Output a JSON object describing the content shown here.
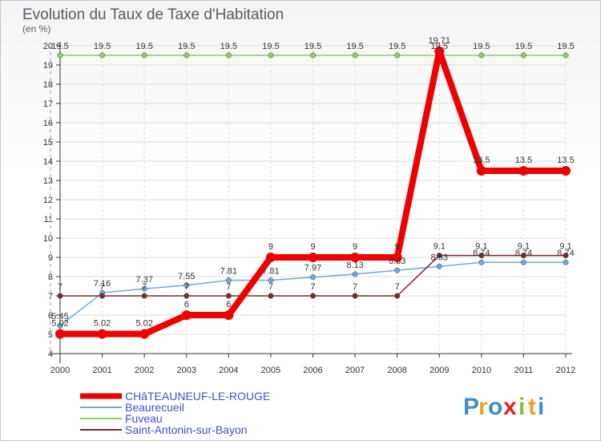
{
  "chart_data": {
    "type": "line",
    "title": "Evolution du Taux de Taxe d'Habitation",
    "subtitle": "(en %)",
    "x": [
      "2000",
      "2001",
      "2002",
      "2003",
      "2004",
      "2005",
      "2006",
      "2007",
      "2008",
      "2009",
      "2010",
      "2011",
      "2012"
    ],
    "ylim": [
      4,
      20
    ],
    "yticks": [
      "4",
      "5",
      "6",
      "7",
      "8",
      "9",
      "10",
      "11",
      "12",
      "13",
      "14",
      "15",
      "16",
      "17",
      "18",
      "19",
      "20"
    ],
    "grid": true,
    "legend_position": "bottom-left",
    "series": [
      {
        "name": "CHâTEAUNEUF-LE-ROUGE",
        "color": "#ee0000",
        "values": [
          5.02,
          5.02,
          5.02,
          6,
          6,
          9,
          9,
          9,
          9,
          19.71,
          13.5,
          13.5,
          13.5
        ],
        "labels": [
          "5.02",
          "5.02",
          "5.02",
          "6",
          "6",
          "9",
          "9",
          "9",
          "9",
          "19.71",
          "13.5",
          "13.5",
          "13.5"
        ]
      },
      {
        "name": "Beaurecueil",
        "color": "#6fa8d6",
        "values": [
          5.45,
          7.16,
          7.37,
          7.55,
          7.81,
          7.81,
          7.97,
          8.13,
          8.33,
          8.53,
          8.74,
          8.74,
          8.74
        ],
        "labels": [
          "5.45",
          "7.16",
          "7.37",
          "7.55",
          "7.81",
          "7.81",
          "7.97",
          "8.13",
          "8.33",
          "8.53",
          "8.74",
          "8.74",
          "8.74"
        ]
      },
      {
        "name": "Fuveau",
        "color": "#88d060",
        "values": [
          19.5,
          19.5,
          19.5,
          19.5,
          19.5,
          19.5,
          19.5,
          19.5,
          19.5,
          19.5,
          19.5,
          19.5,
          19.5
        ],
        "labels": [
          "19.5",
          "19.5",
          "19.5",
          "19.5",
          "19.5",
          "19.5",
          "19.5",
          "19.5",
          "19.5",
          "19.5",
          "19.5",
          "19.5",
          "19.5"
        ]
      },
      {
        "name": "Saint-Antonin-sur-Bayon",
        "color": "#7a2a2a",
        "values": [
          7,
          7,
          7,
          7,
          7,
          7,
          7,
          7,
          7,
          9.1,
          9.1,
          9.1,
          9.1
        ],
        "labels": [
          "7",
          "7",
          "7",
          "7",
          "7",
          "7",
          "7",
          "7",
          "7",
          "9.1",
          "9.1",
          "9.1",
          "9.1"
        ]
      }
    ]
  },
  "logo": {
    "letters": [
      "P",
      "r",
      "o",
      "x",
      "i",
      "t",
      "i"
    ],
    "colors": [
      "#3a8fd0",
      "#f0a020",
      "#3a8fd0",
      "#e02020",
      "#88c030",
      "#f0a020",
      "#3a8fd0"
    ]
  }
}
